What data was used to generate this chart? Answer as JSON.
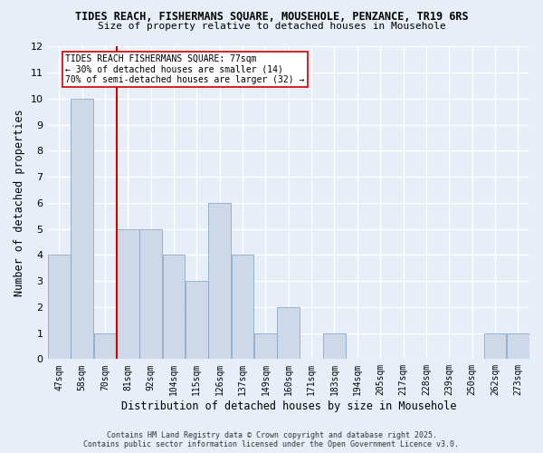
{
  "title_line1": "TIDES REACH, FISHERMANS SQUARE, MOUSEHOLE, PENZANCE, TR19 6RS",
  "title_line2": "Size of property relative to detached houses in Mousehole",
  "xlabel": "Distribution of detached houses by size in Mousehole",
  "ylabel": "Number of detached properties",
  "categories": [
    "47sqm",
    "58sqm",
    "70sqm",
    "81sqm",
    "92sqm",
    "104sqm",
    "115sqm",
    "126sqm",
    "137sqm",
    "149sqm",
    "160sqm",
    "171sqm",
    "183sqm",
    "194sqm",
    "205sqm",
    "217sqm",
    "228sqm",
    "239sqm",
    "250sqm",
    "262sqm",
    "273sqm"
  ],
  "values": [
    4,
    10,
    1,
    5,
    5,
    4,
    3,
    6,
    4,
    1,
    2,
    0,
    1,
    0,
    0,
    0,
    0,
    0,
    0,
    1,
    1
  ],
  "bar_color": "#cdd8e8",
  "bar_edge_color": "#7a9cc0",
  "background_color": "#e8eef7",
  "grid_color": "#ffffff",
  "vline_color": "#cc0000",
  "vline_pos": 2.5,
  "annotation_box_text": "TIDES REACH FISHERMANS SQUARE: 77sqm\n← 30% of detached houses are smaller (14)\n70% of semi-detached houses are larger (32) →",
  "ylim": [
    0,
    12
  ],
  "yticks": [
    0,
    1,
    2,
    3,
    4,
    5,
    6,
    7,
    8,
    9,
    10,
    11,
    12
  ],
  "footer_line1": "Contains HM Land Registry data © Crown copyright and database right 2025.",
  "footer_line2": "Contains public sector information licensed under the Open Government Licence v3.0."
}
